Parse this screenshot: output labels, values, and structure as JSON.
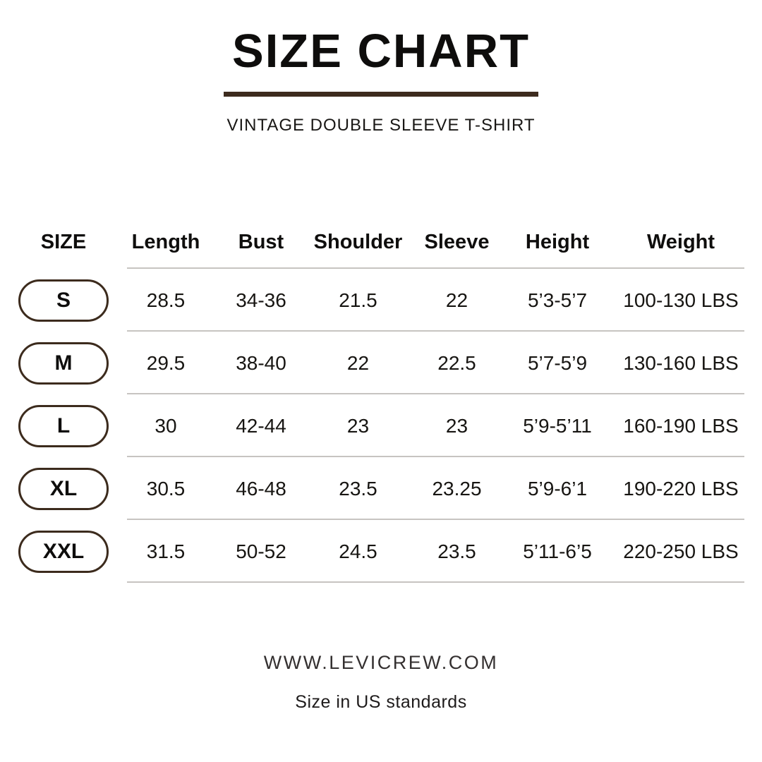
{
  "title": "SIZE CHART",
  "subtitle": "VINTAGE DOUBLE SLEEVE T-SHIRT",
  "table": {
    "columns": [
      "SIZE",
      "Length",
      "Bust",
      "Shoulder",
      "Sleeve",
      "Height",
      "Weight"
    ],
    "rows": [
      {
        "size": "S",
        "length": "28.5",
        "bust": "34-36",
        "shoulder": "21.5",
        "sleeve": "22",
        "height": "5’3-5’7",
        "weight": "100-130 LBS"
      },
      {
        "size": "M",
        "length": "29.5",
        "bust": "38-40",
        "shoulder": "22",
        "sleeve": "22.5",
        "height": "5’7-5’9",
        "weight": "130-160 LBS"
      },
      {
        "size": "L",
        "length": "30",
        "bust": "42-44",
        "shoulder": "23",
        "sleeve": "23",
        "height": "5’9-5’11",
        "weight": "160-190 LBS"
      },
      {
        "size": "XL",
        "length": "30.5",
        "bust": "46-48",
        "shoulder": "23.5",
        "sleeve": "23.25",
        "height": "5’9-6’1",
        "weight": "190-220 LBS"
      },
      {
        "size": "XXL",
        "length": "31.5",
        "bust": "50-52",
        "shoulder": "24.5",
        "sleeve": "23.5",
        "height": "5’11-6’5",
        "weight": "220-250 LBS"
      }
    ]
  },
  "footer": {
    "website": "WWW.LEVICREW.COM",
    "note": "Size in US standards"
  },
  "colors": {
    "accent_brown": "#3d2b1e",
    "rule_gray": "#c7c4c1",
    "text_black": "#0e0d0c"
  }
}
